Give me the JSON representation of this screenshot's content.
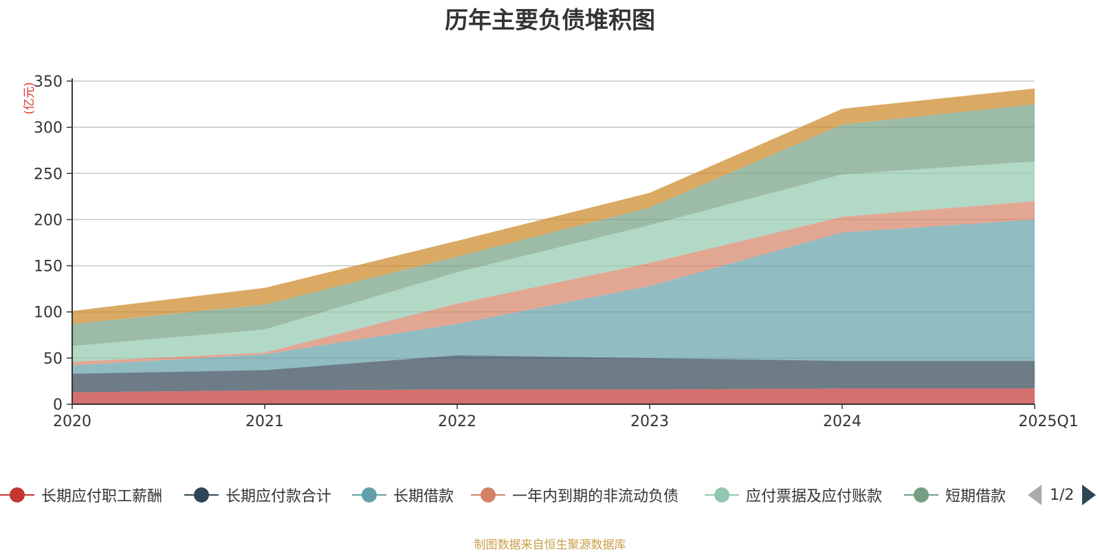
{
  "chart_data": {
    "type": "area",
    "title": "历年主要负债堆积图",
    "ylabel": "(亿元)",
    "xlabel": "",
    "stacked": true,
    "categories": [
      "2020",
      "2021",
      "2022",
      "2023",
      "2024",
      "2025Q1"
    ],
    "ylim": [
      0,
      350
    ],
    "yticks": [
      0,
      50,
      100,
      150,
      200,
      250,
      300,
      350
    ],
    "grid": true,
    "legend_position": "bottom",
    "series": [
      {
        "name": "长期应付职工薪酬",
        "color": "#c23531",
        "values": [
          13,
          15,
          16,
          16,
          17,
          17
        ]
      },
      {
        "name": "长期应付款合计",
        "color": "#2f4554",
        "values": [
          20,
          22,
          37,
          34,
          30,
          30
        ]
      },
      {
        "name": "长期借款",
        "color": "#61a0a8",
        "values": [
          9,
          17,
          34,
          78,
          139,
          153
        ]
      },
      {
        "name": "一年内到期的非流动负债",
        "color": "#d48265",
        "values": [
          4,
          2,
          22,
          25,
          17,
          20
        ]
      },
      {
        "name": "应付票据及应付账款",
        "color": "#91c7ae",
        "values": [
          17,
          25,
          34,
          41,
          46,
          43
        ]
      },
      {
        "name": "短期借款",
        "color": "#749f83",
        "values": [
          24,
          27,
          17,
          19,
          54,
          62
        ]
      },
      {
        "color": "#ca8622",
        "values": [
          14,
          18,
          17,
          16,
          17,
          17
        ]
      }
    ]
  },
  "legend": {
    "page_label": "1/2"
  },
  "source_note": "制图数据来自恒生聚源数据库"
}
